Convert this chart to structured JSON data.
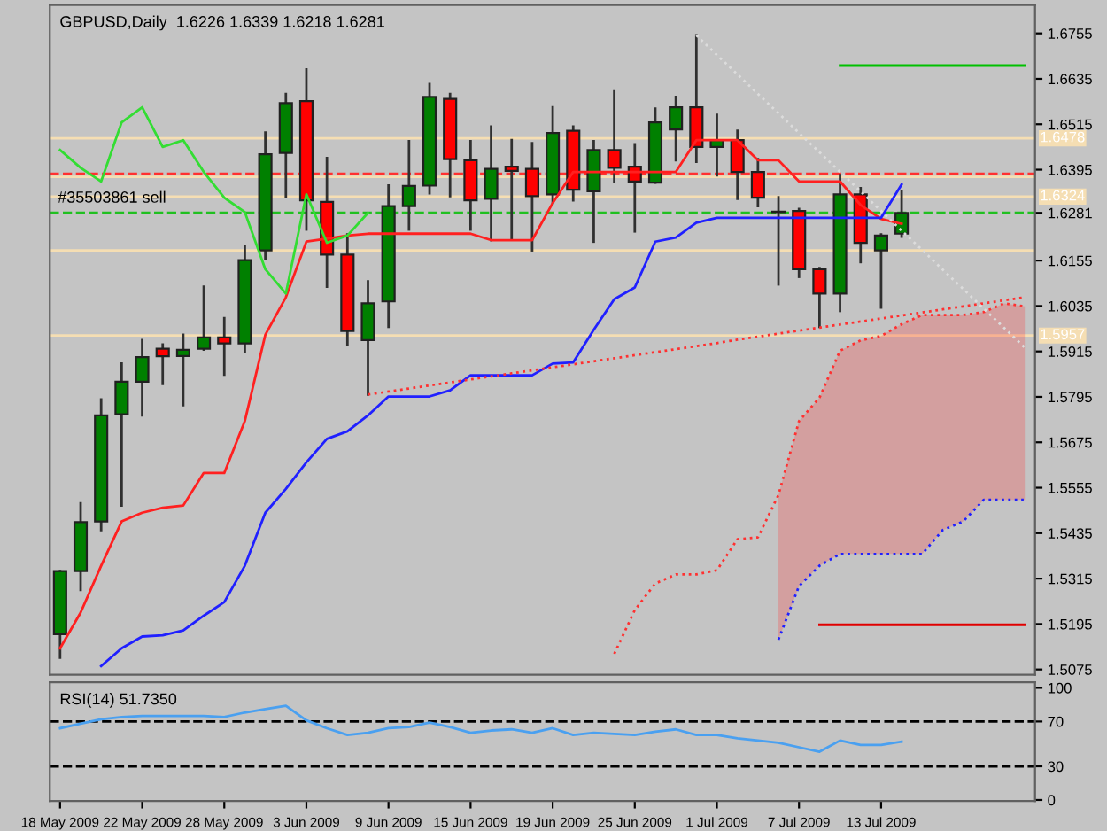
{
  "chart_data": [
    {
      "type": "candlestick",
      "title": "GBPUSD,Daily  1.6226 1.6339 1.6218 1.6281",
      "categories": [
        null,
        null,
        null,
        null,
        null,
        null,
        null,
        null,
        null,
        null,
        null,
        null,
        null,
        null,
        null,
        null,
        null,
        null,
        null,
        null,
        null,
        null,
        null,
        null,
        null,
        null,
        null,
        null,
        null,
        null,
        null,
        null,
        null,
        null,
        null,
        null,
        null,
        null,
        null,
        null,
        null,
        null,
        null,
        null,
        null,
        null,
        null,
        null
      ],
      "ohlc": [
        [
          1.5168,
          1.5335,
          1.5106,
          1.5335
        ],
        [
          1.5335,
          1.5514,
          1.5285,
          1.5464
        ],
        [
          1.5466,
          1.5788,
          1.5443,
          1.5746
        ],
        [
          1.5749,
          1.5883,
          1.5508,
          1.5835
        ],
        [
          1.5835,
          1.5945,
          1.5746,
          1.59
        ],
        [
          1.5922,
          1.5933,
          1.5829,
          1.5902
        ],
        [
          1.5903,
          1.5959,
          1.5773,
          1.5919
        ],
        [
          1.5922,
          1.6086,
          1.592,
          1.5952
        ],
        [
          1.5952,
          1.6003,
          1.5854,
          1.5936
        ],
        [
          1.5936,
          1.6193,
          1.5913,
          1.6156
        ],
        [
          1.6182,
          1.6493,
          1.6159,
          1.6436
        ],
        [
          1.6439,
          1.6595,
          1.6322,
          1.6571
        ],
        [
          1.6576,
          1.666,
          1.6237,
          1.6314
        ],
        [
          1.631,
          1.6426,
          1.6086,
          1.6171
        ],
        [
          1.6171,
          1.6224,
          1.5933,
          1.5969
        ],
        [
          1.5945,
          1.61,
          1.5801,
          1.6042
        ],
        [
          1.6047,
          1.6353,
          1.598,
          1.6299
        ],
        [
          1.6299,
          1.647,
          1.6237,
          1.6352
        ],
        [
          1.6353,
          1.6621,
          1.6333,
          1.6587
        ],
        [
          1.6582,
          1.6595,
          1.6325,
          1.6423
        ],
        [
          1.642,
          1.647,
          1.6237,
          1.6314
        ],
        [
          1.6318,
          1.6509,
          1.6209,
          1.6397
        ],
        [
          1.6403,
          1.6473,
          1.6213,
          1.6392
        ],
        [
          1.6397,
          1.6465,
          1.6182,
          1.6325
        ],
        [
          1.633,
          1.656,
          1.6307,
          1.6492
        ],
        [
          1.6498,
          1.6509,
          1.6314,
          1.6342
        ],
        [
          1.6338,
          1.647,
          1.6205,
          1.6447
        ],
        [
          1.6447,
          1.6602,
          1.6364,
          1.64
        ],
        [
          1.6403,
          1.6462,
          1.6232,
          1.6364
        ],
        [
          1.6361,
          1.6556,
          1.6361,
          1.652
        ],
        [
          1.6501,
          1.6587,
          1.642,
          1.656
        ],
        [
          1.656,
          1.675,
          1.6416,
          1.6455
        ],
        [
          1.6455,
          1.654,
          1.638,
          1.6473
        ],
        [
          1.6473,
          1.6498,
          1.6318,
          1.6389
        ],
        [
          1.6389,
          1.6423,
          1.6299,
          1.6321
        ],
        [
          1.6283,
          1.6322,
          1.6092,
          1.6283
        ],
        [
          1.6286,
          1.6291,
          1.6112,
          1.6132
        ],
        [
          1.6132,
          1.6135,
          1.598,
          1.6068
        ],
        [
          1.6068,
          1.6381,
          1.6022,
          1.633
        ],
        [
          1.633,
          1.6346,
          1.6151,
          1.6202
        ],
        [
          1.6182,
          1.6224,
          1.6031,
          1.6221
        ],
        [
          1.6226,
          1.6339,
          1.6218,
          1.6281
        ],
        null,
        null,
        null,
        null,
        null,
        null
      ],
      "series": [
        {
          "type": "line",
          "color": "#ff2020",
          "line_style": "solid",
          "values": [
            1.5131,
            1.5225,
            1.5349,
            1.5466,
            1.5489,
            1.5502,
            1.5508,
            1.5594,
            1.5594,
            1.5731,
            1.5959,
            1.6058,
            1.6205,
            1.6213,
            1.6221,
            1.6226,
            1.6226,
            1.6226,
            1.6226,
            1.6226,
            1.6226,
            1.6209,
            1.6209,
            1.6209,
            1.6307,
            1.6389,
            1.6389,
            1.6389,
            1.6389,
            1.6389,
            1.6389,
            1.6473,
            1.6473,
            1.6473,
            1.642,
            1.642,
            1.6364,
            1.6364,
            1.6364,
            1.6302,
            1.6265,
            1.6252,
            null,
            null,
            null,
            null,
            null,
            null
          ]
        },
        {
          "type": "line",
          "color": "#2020ff",
          "line_style": "solid",
          "values": [
            null,
            null,
            1.5084,
            1.5131,
            1.5162,
            1.5165,
            1.5178,
            1.5217,
            1.5253,
            1.5349,
            1.5489,
            1.5552,
            1.5622,
            1.5684,
            1.5704,
            1.5746,
            1.5796,
            1.5796,
            1.5796,
            1.5812,
            1.5852,
            1.5852,
            1.5852,
            1.5852,
            1.5883,
            1.5886,
            1.5972,
            1.6053,
            1.6084,
            1.6205,
            1.6216,
            1.6255,
            1.6268,
            1.6268,
            1.6268,
            1.6268,
            1.6268,
            1.6268,
            1.6268,
            1.6268,
            1.6268,
            1.6356,
            null,
            null,
            null,
            null,
            null,
            null
          ]
        },
        {
          "type": "line",
          "color": "#33dd33",
          "line_style": "solid",
          "values": [
            1.6447,
            1.64,
            1.6364,
            1.652,
            1.656,
            1.6455,
            1.6473,
            1.6389,
            1.6321,
            1.6283,
            1.6132,
            1.6068,
            1.633,
            1.6202,
            1.6221,
            1.6281,
            null,
            null,
            null,
            null,
            null,
            null,
            null,
            null,
            null,
            null,
            null,
            null,
            null,
            null,
            null,
            null,
            null,
            null,
            null,
            null,
            null,
            null,
            null,
            null,
            null,
            null,
            null,
            null,
            null,
            null,
            null,
            null
          ]
        },
        {
          "type": "line",
          "color": "#ff3030",
          "line_style": "dotted",
          "values": [
            null,
            null,
            null,
            null,
            null,
            null,
            null,
            null,
            null,
            null,
            null,
            null,
            null,
            null,
            null,
            null,
            null,
            null,
            null,
            null,
            null,
            null,
            null,
            null,
            null,
            null,
            null,
            1.5116,
            1.5232,
            1.5302,
            1.5326,
            1.5326,
            1.5337,
            1.5419,
            1.5424,
            1.5536,
            1.5731,
            1.5793,
            1.5917,
            1.5944,
            1.5956,
            1.5987,
            1.6011,
            1.6011,
            1.6011,
            1.6019,
            1.6042,
            1.6034
          ],
          "upper": [
            null,
            null,
            null,
            null,
            null,
            null,
            null,
            null,
            null,
            null,
            null,
            null,
            null,
            null,
            null,
            null,
            null,
            null,
            null,
            null,
            null,
            null,
            null,
            null,
            null,
            null,
            null,
            null,
            null,
            null,
            null,
            null,
            null,
            null,
            null,
            1.5536,
            1.5731,
            1.5793,
            1.5917,
            1.5944,
            1.5956,
            1.5987,
            1.6011,
            1.6011,
            1.6011,
            1.6019,
            1.6042,
            1.6034
          ],
          "lower": [
            null,
            null,
            null,
            null,
            null,
            null,
            null,
            null,
            null,
            null,
            null,
            null,
            null,
            null,
            null,
            null,
            null,
            null,
            null,
            null,
            null,
            null,
            null,
            null,
            null,
            null,
            null,
            null,
            null,
            null,
            null,
            null,
            null,
            null,
            null,
            1.5154,
            1.5295,
            1.5349,
            1.538,
            1.538,
            1.538,
            1.538,
            1.538,
            1.5443,
            1.5466,
            1.5523,
            1.5523,
            1.5523
          ]
        },
        {
          "type": "line",
          "color": "#2020ff",
          "line_style": "dotted",
          "values": [
            null,
            null,
            null,
            null,
            null,
            null,
            null,
            null,
            null,
            null,
            null,
            null,
            null,
            null,
            null,
            null,
            null,
            null,
            null,
            null,
            null,
            null,
            null,
            null,
            null,
            null,
            null,
            null,
            null,
            null,
            null,
            null,
            null,
            null,
            null,
            1.5154,
            1.5295,
            1.5349,
            1.538,
            1.538,
            1.538,
            1.538,
            1.538,
            1.5443,
            1.5466,
            1.5523,
            1.5523,
            1.5523
          ]
        },
        {
          "type": "line",
          "color": "#ff3030",
          "line_style": "dotted",
          "values": [
            null,
            null,
            null,
            null,
            null,
            null,
            null,
            null,
            null,
            null,
            null,
            null,
            null,
            null,
            null,
            1.5801,
            1.5809,
            1.5817,
            1.5825,
            1.5833,
            1.5841,
            1.5849,
            1.5857,
            1.5865,
            1.5873,
            1.5881,
            1.5889,
            1.5897,
            1.5905,
            1.5913,
            1.5921,
            1.5929,
            1.5937,
            1.5946,
            1.5954,
            1.5962,
            1.597,
            1.5978,
            1.5986,
            1.5994,
            1.6002,
            1.601,
            1.6018,
            1.6026,
            1.6034,
            1.6042,
            1.605,
            1.6058
          ]
        },
        {
          "type": "line",
          "color": "#dcdcdc",
          "line_style": "dotted",
          "values": [
            null,
            null,
            null,
            null,
            null,
            null,
            null,
            null,
            null,
            null,
            null,
            null,
            null,
            null,
            null,
            null,
            null,
            null,
            null,
            null,
            null,
            null,
            null,
            null,
            null,
            null,
            null,
            null,
            null,
            null,
            null,
            1.675,
            1.6698,
            1.6647,
            1.6595,
            1.6544,
            1.6492,
            1.6441,
            1.6389,
            1.6338,
            1.6286,
            1.6234,
            1.6183,
            1.6131,
            1.608,
            1.6028,
            1.5977,
            1.5925
          ]
        },
        {
          "type": "line",
          "color": "#00c000",
          "line_style": "solid",
          "values": [
            null,
            null,
            null,
            null,
            null,
            null,
            null,
            null,
            null,
            null,
            null,
            null,
            null,
            null,
            null,
            null,
            null,
            null,
            null,
            null,
            null,
            null,
            null,
            null,
            null,
            null,
            null,
            null,
            null,
            null,
            null,
            null,
            null,
            null,
            null,
            null,
            null,
            null,
            1.667,
            1.667,
            1.667,
            1.667,
            1.667,
            1.667,
            1.667,
            1.667,
            1.667,
            1.667
          ]
        },
        {
          "type": "line",
          "color": "#e00000",
          "line_style": "solid",
          "values": [
            null,
            null,
            null,
            null,
            null,
            null,
            null,
            null,
            null,
            null,
            null,
            null,
            null,
            null,
            null,
            null,
            null,
            null,
            null,
            null,
            null,
            null,
            null,
            null,
            null,
            null,
            null,
            null,
            null,
            null,
            null,
            null,
            null,
            null,
            null,
            null,
            null,
            1.5193,
            1.5193,
            1.5193,
            1.5193,
            1.5193,
            1.5193,
            1.5193,
            1.5193,
            1.5193,
            1.5193,
            1.5193
          ]
        }
      ],
      "ref_lines": [
        {
          "axis": "y",
          "value": 1.6478,
          "label": "1.6478",
          "color": "#f5deb3",
          "line_style": "solid"
        },
        {
          "axis": "y",
          "value": 1.6376,
          "label": null,
          "color": "#f5deb3",
          "line_style": "solid"
        },
        {
          "axis": "y",
          "value": 1.6384,
          "label": null,
          "color": "#ff3030",
          "line_style": "dashed"
        },
        {
          "axis": "y",
          "value": 1.6324,
          "label": "1.6324",
          "color": "#f5deb3",
          "line_style": "solid"
        },
        {
          "axis": "y",
          "value": 1.6281,
          "label": null,
          "color": "#20c020",
          "line_style": "dashed"
        },
        {
          "axis": "y",
          "value": 1.6182,
          "label": null,
          "color": "#f5deb3",
          "line_style": "solid"
        },
        {
          "axis": "y",
          "value": 1.5957,
          "label": "1.5957",
          "color": "#f5deb3",
          "line_style": "solid"
        }
      ],
      "annotations": [
        "#35503861 sell"
      ],
      "ylim": [
        1.5061,
        1.683
      ],
      "yticks": [
        1.5075,
        1.5195,
        1.5315,
        1.5435,
        1.5555,
        1.5675,
        1.5795,
        1.5915,
        1.6035,
        1.6155,
        1.6281,
        1.6395,
        1.6515,
        1.6635,
        1.6755
      ],
      "tick_labels": "y",
      "grid": false,
      "legend": false,
      "marker": "none"
    },
    {
      "type": "line",
      "title": "RSI(14) 51.7350",
      "categories": [
        "18 May 2009",
        null,
        null,
        null,
        "22 May 2009",
        null,
        null,
        null,
        "28 May 2009",
        null,
        null,
        null,
        "3 Jun 2009",
        null,
        null,
        null,
        "9 Jun 2009",
        null,
        null,
        null,
        "15 Jun 2009",
        null,
        null,
        null,
        "19 Jun 2009",
        null,
        null,
        null,
        "25 Jun 2009",
        null,
        null,
        null,
        "1 Jul 2009",
        null,
        null,
        null,
        "7 Jul 2009",
        null,
        null,
        null,
        "13 Jul 2009",
        null,
        null,
        null,
        null,
        null,
        null,
        null
      ],
      "series": [
        {
          "color": "#4aa0f0",
          "values": [
            64,
            68,
            72,
            74,
            75,
            75,
            75,
            75,
            74,
            78,
            81,
            84,
            71,
            64,
            58,
            60,
            64,
            65,
            69,
            65,
            60,
            62,
            63,
            60,
            64,
            58,
            60,
            59,
            58,
            61,
            63,
            58,
            58,
            55,
            53,
            51,
            47,
            43,
            53,
            49,
            49,
            52,
            null,
            null,
            null,
            null,
            null,
            null
          ]
        }
      ],
      "ref_lines": [
        {
          "axis": "y",
          "value": 70,
          "label": null,
          "color": "#000000",
          "line_style": "dashed"
        },
        {
          "axis": "y",
          "value": 30,
          "label": null,
          "color": "#000000",
          "line_style": "dashed"
        }
      ],
      "ylim": [
        -1,
        105
      ],
      "yticks": [
        0,
        30,
        70,
        100
      ],
      "grid": false,
      "legend": false,
      "marker": "none"
    }
  ]
}
